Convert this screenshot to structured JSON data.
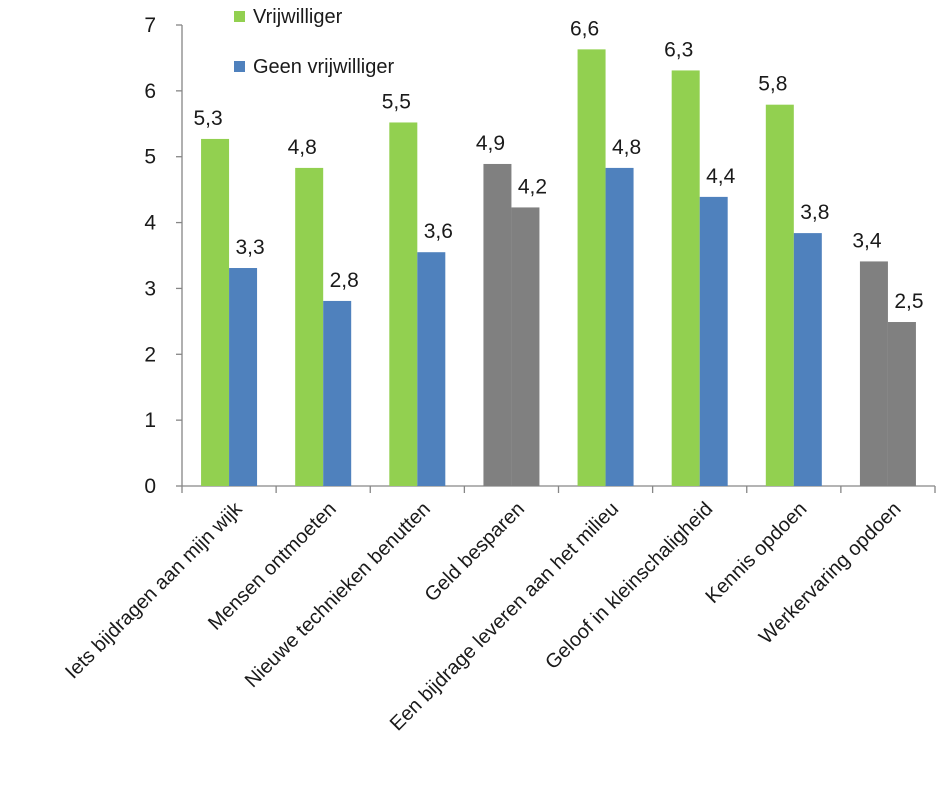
{
  "chart_data": {
    "type": "bar",
    "title": "",
    "xlabel": "",
    "ylabel": "",
    "ylim": [
      0,
      7
    ],
    "yticks": [
      0,
      1,
      2,
      3,
      4,
      5,
      6,
      7
    ],
    "grid": false,
    "legend_position": "top",
    "categories": [
      "Iets bijdragen aan mijn wijk",
      "Mensen ontmoeten",
      "Nieuwe technieken benutten",
      "Geld besparen",
      "Een bijdrage leveren aan het milieu",
      "Geloof in kleinschaligheid",
      "Kennis opdoen",
      "Werkervaring opdoen"
    ],
    "series": [
      {
        "name": "Vrijwilliger",
        "color": "#92d050",
        "values": [
          5.27,
          4.83,
          5.52,
          4.89,
          6.63,
          6.31,
          5.79,
          3.41
        ],
        "labels": [
          "5,3",
          "4,8",
          "5,5",
          "4,9",
          "6,6",
          "6,3",
          "5,8",
          "3,4"
        ]
      },
      {
        "name": "Geen vrijwilliger",
        "color": "#4f81bd",
        "values": [
          3.31,
          2.81,
          3.55,
          4.23,
          4.83,
          4.39,
          3.84,
          2.49
        ],
        "labels": [
          "3,3",
          "2,8",
          "3,6",
          "4,2",
          "4,8",
          "4,4",
          "3,8",
          "2,5"
        ]
      }
    ],
    "highlight_color": "#808080",
    "highlighted_categories": [
      3,
      7
    ]
  }
}
